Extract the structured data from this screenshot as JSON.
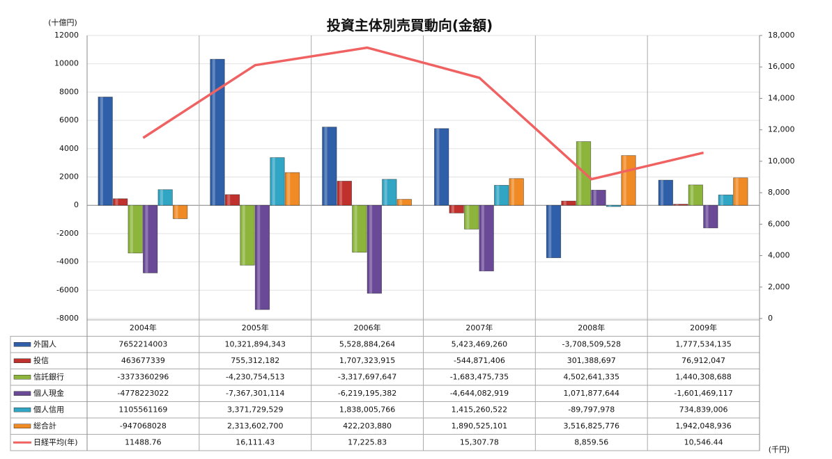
{
  "chart_data": {
    "type": "bar",
    "title": "投資主体別売買動向(金額)",
    "y_label": "(十億円)",
    "y2_label": "(千円)",
    "categories": [
      "2004年",
      "2005年",
      "2006年",
      "2007年",
      "2008年",
      "2009年"
    ],
    "ylim": [
      -8000,
      12000
    ],
    "yticks": [
      -8000,
      -6000,
      -4000,
      -2000,
      0,
      2000,
      4000,
      6000,
      8000,
      10000,
      12000
    ],
    "y2lim": [
      0,
      18000
    ],
    "y2ticks": [
      0,
      {
        "value": 2000,
        "label": "2,000"
      },
      {
        "value": 4000,
        "label": "4,000"
      },
      {
        "value": 6000,
        "label": "6,000"
      },
      {
        "value": 8000,
        "label": "8,000"
      },
      {
        "value": 10000,
        "label": "10,000"
      },
      {
        "value": 12000,
        "label": "12,000"
      },
      {
        "value": 14000,
        "label": "14,000"
      },
      {
        "value": 16000,
        "label": "16,000"
      },
      {
        "value": 18000,
        "label": "18,000"
      }
    ],
    "grid": true,
    "series": [
      {
        "name": "外国人",
        "color": "#2f5fa9",
        "values": [
          7652.214003,
          10321.894343,
          5528.884264,
          5423.46926,
          -3708.509528,
          1777.534135
        ],
        "value_labels": [
          "7652214003",
          "10,321,894,343",
          "5,528,884,264",
          "5,423,469,260",
          "-3,708,509,528",
          "1,777,534,135"
        ]
      },
      {
        "name": "投信",
        "color": "#c0302c",
        "values": [
          463.677339,
          755.312182,
          1707.323915,
          -544.871406,
          301.388697,
          76.912047
        ],
        "value_labels": [
          "463677339",
          "755,312,182",
          "1,707,323,915",
          "-544,871,406",
          "301,388,697",
          "76,912,047"
        ]
      },
      {
        "name": "信託銀行",
        "color": "#8db43b",
        "values": [
          -3373.360296,
          -4230.754513,
          -3317.697647,
          -1683.475735,
          4502.641335,
          1440.308688
        ],
        "value_labels": [
          "-3373360296",
          "-4,230,754,513",
          "-3,317,697,647",
          "-1,683,475,735",
          "4,502,641,335",
          "1,440,308,688"
        ]
      },
      {
        "name": "個人現金",
        "color": "#6a4a97",
        "values": [
          -4778.223022,
          -7367.301114,
          -6219.195382,
          -4644.082919,
          1071.877644,
          -1601.469117
        ],
        "value_labels": [
          "-4778223022",
          "-7,367,301,114",
          "-6,219,195,382",
          "-4,644,082,919",
          "1,071,877,644",
          "-1,601,469,117"
        ]
      },
      {
        "name": "個人信用",
        "color": "#30a5c4",
        "values": [
          1105.561169,
          3371.729529,
          1838.005766,
          1415.260522,
          -89.797978,
          734.839006
        ],
        "value_labels": [
          "1105561169",
          "3,371,729,529",
          "1,838,005,766",
          "1,415,260,522",
          "-89,797,978",
          "734,839,006"
        ]
      },
      {
        "name": "総合計",
        "color": "#f08a24",
        "values": [
          -947.068028,
          2313.6027,
          422.20388,
          1890.525101,
          3516.825776,
          1942.048936
        ],
        "value_labels": [
          "-947068028",
          "2,313,602,700",
          "422,203,880",
          "1,890,525,101",
          "3,516,825,776",
          "1,942,048,936"
        ]
      },
      {
        "name": "日経平均(年)",
        "color": "#f06262",
        "type": "line",
        "axis": "y2",
        "values": [
          11488.76,
          16111.43,
          17225.83,
          15307.78,
          8859.56,
          10546.44
        ],
        "value_labels": [
          "11488.76",
          "16,111.43",
          "17,225.83",
          "15,307.78",
          "8,859.56",
          "10,546.44"
        ]
      }
    ]
  }
}
